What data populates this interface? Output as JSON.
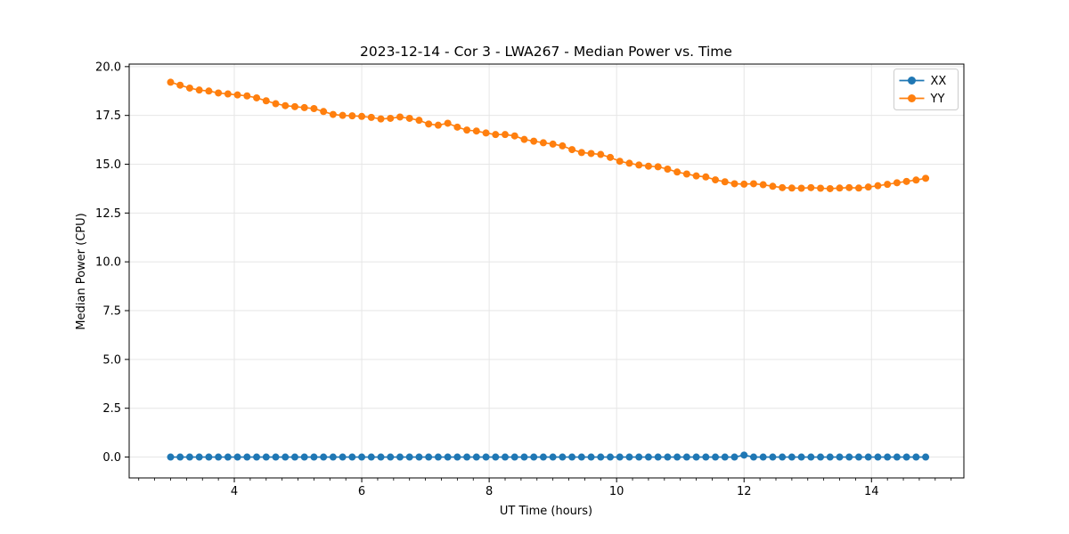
{
  "chart_data": {
    "type": "line",
    "title": "2023-12-14 - Cor 3 - LWA267 - Median Power vs. Time",
    "xlabel": "UT Time (hours)",
    "ylabel": "Median Power (CPU)",
    "xlim": [
      2.35,
      15.45
    ],
    "ylim": [
      -1.07,
      20.13
    ],
    "xticks": [
      4,
      6,
      8,
      10,
      12,
      14
    ],
    "yticks": [
      0.0,
      2.5,
      5.0,
      7.5,
      10.0,
      12.5,
      15.0,
      17.5,
      20.0
    ],
    "x_minor_step": 0.25,
    "grid": true,
    "grid_color": "#e6e6e6",
    "legend_position": "upper right",
    "marker": "circle",
    "x": [
      3.0,
      3.15,
      3.3,
      3.45,
      3.6,
      3.75,
      3.9,
      4.05,
      4.2,
      4.35,
      4.5,
      4.65,
      4.8,
      4.95,
      5.1,
      5.25,
      5.4,
      5.55,
      5.7,
      5.85,
      6.0,
      6.15,
      6.3,
      6.45,
      6.6,
      6.75,
      6.9,
      7.05,
      7.2,
      7.35,
      7.5,
      7.65,
      7.8,
      7.95,
      8.1,
      8.25,
      8.4,
      8.55,
      8.7,
      8.85,
      9.0,
      9.15,
      9.3,
      9.45,
      9.6,
      9.75,
      9.9,
      10.05,
      10.2,
      10.35,
      10.5,
      10.65,
      10.8,
      10.95,
      11.1,
      11.25,
      11.4,
      11.55,
      11.7,
      11.85,
      12.0,
      12.15,
      12.3,
      12.45,
      12.6,
      12.75,
      12.9,
      13.05,
      13.2,
      13.35,
      13.5,
      13.65,
      13.8,
      13.95,
      14.1,
      14.25,
      14.4,
      14.55,
      14.7,
      14.85
    ],
    "series": [
      {
        "name": "XX",
        "color": "#1f77b4",
        "values": [
          0,
          0,
          0,
          0,
          0,
          0,
          0,
          0,
          0,
          0,
          0,
          0,
          0,
          0,
          0,
          0,
          0,
          0,
          0,
          0,
          0,
          0,
          0,
          0,
          0,
          0,
          0,
          0,
          0,
          0,
          0,
          0,
          0,
          0,
          0,
          0,
          0,
          0,
          0,
          0,
          0,
          0,
          0,
          0,
          0,
          0,
          0,
          0,
          0,
          0,
          0,
          0,
          0,
          0,
          0,
          0,
          0,
          0,
          0,
          0,
          0.1,
          0,
          0,
          0,
          0,
          0,
          0,
          0,
          0,
          0,
          0,
          0,
          0,
          0,
          0,
          0,
          0,
          0,
          0,
          0
        ]
      },
      {
        "name": "YY",
        "color": "#ff7f0e",
        "values": [
          19.2,
          19.05,
          18.9,
          18.8,
          18.75,
          18.65,
          18.6,
          18.55,
          18.5,
          18.4,
          18.25,
          18.1,
          18.0,
          17.95,
          17.9,
          17.85,
          17.7,
          17.55,
          17.5,
          17.48,
          17.45,
          17.4,
          17.32,
          17.35,
          17.42,
          17.35,
          17.25,
          17.06,
          17.0,
          17.1,
          16.9,
          16.75,
          16.7,
          16.6,
          16.52,
          16.52,
          16.45,
          16.27,
          16.18,
          16.1,
          16.03,
          15.94,
          15.75,
          15.6,
          15.55,
          15.5,
          15.35,
          15.15,
          15.05,
          14.96,
          14.9,
          14.87,
          14.75,
          14.6,
          14.5,
          14.4,
          14.35,
          14.2,
          14.1,
          14.0,
          13.98,
          14.0,
          13.95,
          13.87,
          13.8,
          13.78,
          13.77,
          13.8,
          13.77,
          13.75,
          13.78,
          13.8,
          13.78,
          13.83,
          13.9,
          13.97,
          14.05,
          14.12,
          14.19,
          14.28
        ]
      }
    ]
  }
}
